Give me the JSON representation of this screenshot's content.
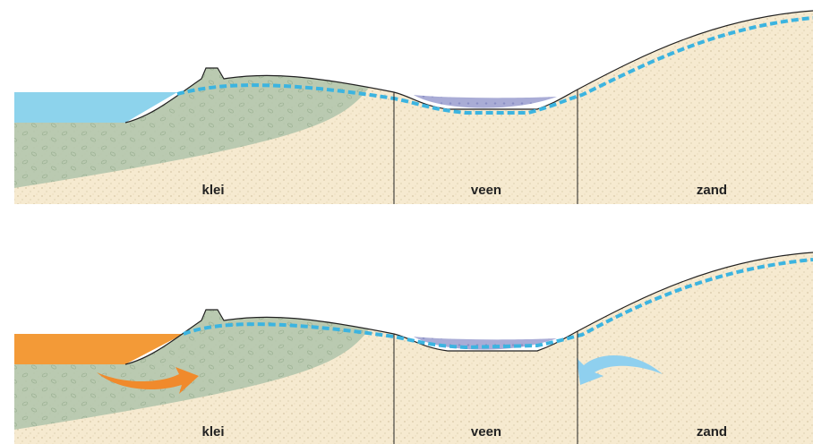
{
  "panels": [
    {
      "labels": [
        "klei",
        "veen",
        "zand"
      ]
    },
    {
      "labels": [
        "klei",
        "veen",
        "zand"
      ]
    }
  ]
}
